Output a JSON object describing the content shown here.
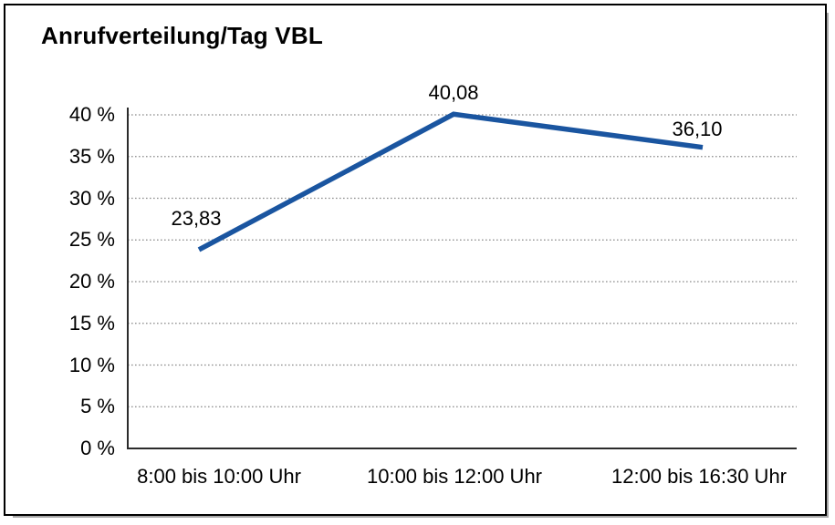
{
  "chart_data": {
    "type": "line",
    "title": "Anrufverteilung/Tag VBL",
    "categories": [
      "8:00 bis 10:00 Uhr",
      "10:00 bis 12:00 Uhr",
      "12:00 bis 16:30 Uhr"
    ],
    "values": [
      23.83,
      40.08,
      36.1
    ],
    "value_labels": [
      "23,83",
      "40,08",
      "36,10"
    ],
    "y_ticks": [
      {
        "value": 0,
        "label": "0 %"
      },
      {
        "value": 5,
        "label": "5 %"
      },
      {
        "value": 10,
        "label": "10 %"
      },
      {
        "value": 15,
        "label": "15 %"
      },
      {
        "value": 20,
        "label": "20 %"
      },
      {
        "value": 25,
        "label": "25 %"
      },
      {
        "value": 30,
        "label": "30 %"
      },
      {
        "value": 35,
        "label": "35 %"
      },
      {
        "value": 40,
        "label": "40 %"
      }
    ],
    "ylim": [
      0,
      40
    ],
    "xlabel": "",
    "ylabel": "",
    "legend_position": "none",
    "grid": "horizontal-dotted",
    "colors": {
      "line": "#1A55A0",
      "grid": "#8a8a8a",
      "axis": "#2b2b2b",
      "text": "#000000",
      "frame": "#000000",
      "frame_shadow": "#a8a8a8",
      "background": "#ffffff"
    }
  }
}
